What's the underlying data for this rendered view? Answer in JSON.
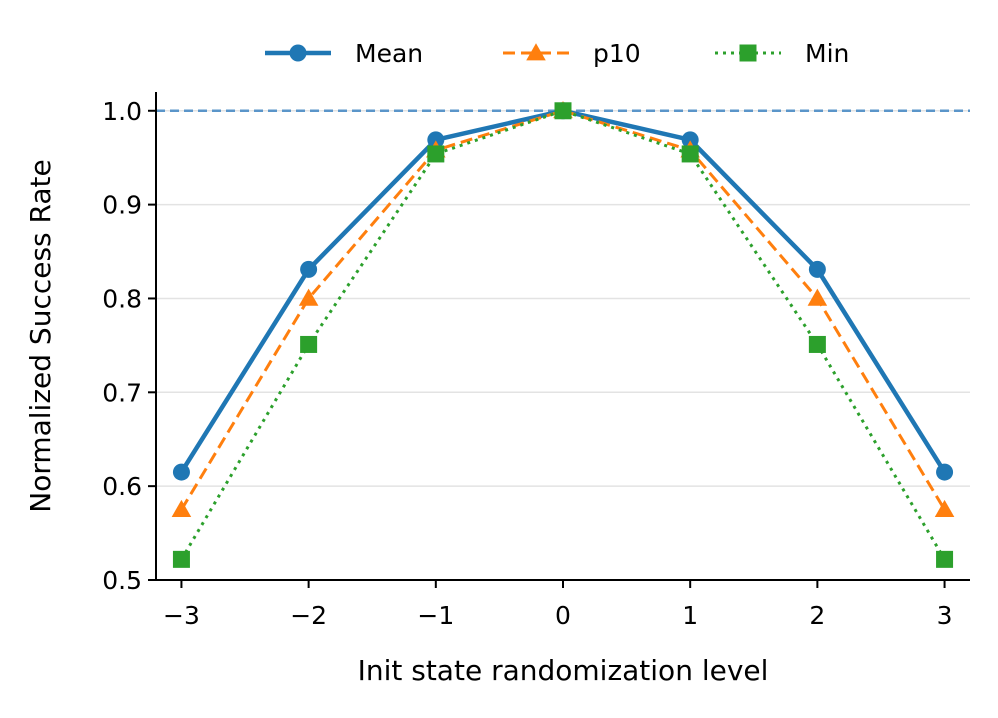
{
  "chart_data": {
    "type": "line",
    "title": "",
    "xlabel": "Init state randomization level",
    "ylabel": "Normalized Success Rate",
    "x": [
      -3,
      -2,
      -1,
      0,
      1,
      2,
      3
    ],
    "xtick_labels": [
      "−3",
      "−2",
      "−1",
      "0",
      "1",
      "2",
      "3"
    ],
    "ytick_values": [
      0.5,
      0.6,
      0.7,
      0.8,
      0.9,
      1.0
    ],
    "ytick_labels": [
      "0.5",
      "0.6",
      "0.7",
      "0.8",
      "0.9",
      "1.0"
    ],
    "xlim": [
      -3.2,
      3.2
    ],
    "ylim": [
      0.5,
      1.02
    ],
    "grid": "horizontal, light",
    "legend_position": "top-center",
    "reference_line": {
      "y": 1.0,
      "style": "dashed",
      "color": "#5a95c9"
    },
    "series": [
      {
        "name": "Mean",
        "values": [
          0.615,
          0.831,
          0.969,
          1.0,
          0.969,
          0.831,
          0.615
        ],
        "color": "#1f77b4",
        "line_style": "solid",
        "marker": "circle"
      },
      {
        "name": "p10",
        "values": [
          0.575,
          0.8,
          0.958,
          1.0,
          0.958,
          0.8,
          0.575
        ],
        "color": "#ff7f0e",
        "line_style": "dashed",
        "marker": "triangle"
      },
      {
        "name": "Min",
        "values": [
          0.522,
          0.751,
          0.954,
          1.0,
          0.954,
          0.751,
          0.522
        ],
        "color": "#2ca02c",
        "line_style": "dotted",
        "marker": "square"
      }
    ]
  }
}
